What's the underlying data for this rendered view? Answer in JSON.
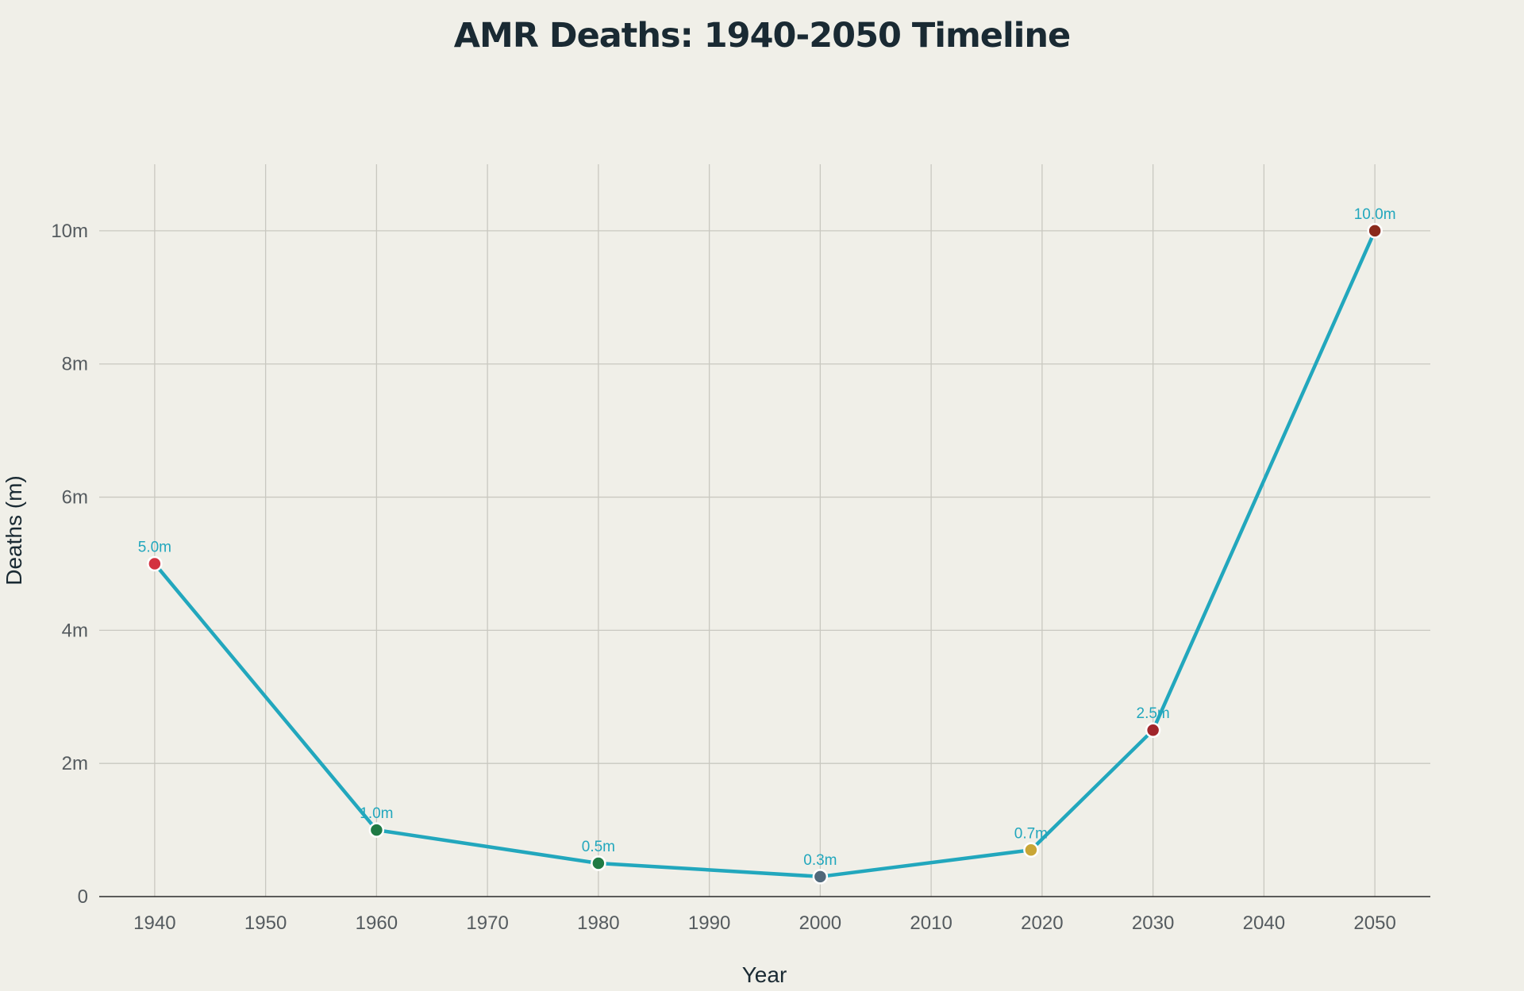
{
  "chart_data": {
    "type": "line",
    "title": "AMR Deaths: 1940-2050 Timeline",
    "xlabel": "Year",
    "ylabel": "Deaths (m)",
    "xlim": [
      1935,
      2055
    ],
    "ylim": [
      0,
      11
    ],
    "grid": true,
    "x_ticks": [
      1940,
      1950,
      1960,
      1970,
      1980,
      1990,
      2000,
      2010,
      2020,
      2030,
      2040,
      2050
    ],
    "x_tick_labels": [
      "1940",
      "1950",
      "1960",
      "1970",
      "1980",
      "1990",
      "2000",
      "2010",
      "2020",
      "2030",
      "2040",
      "2050"
    ],
    "y_ticks": [
      0,
      2,
      4,
      6,
      8,
      10
    ],
    "y_tick_labels": [
      "0",
      "2m",
      "4m",
      "6m",
      "8m",
      "10m"
    ],
    "line_color": "#22a7bd",
    "series": [
      {
        "x": [
          1940,
          1960,
          1980,
          2000,
          2019,
          2030,
          2050
        ],
        "y": [
          5.0,
          1.0,
          0.5,
          0.3,
          0.7,
          2.5,
          10.0
        ],
        "labels": [
          "5.0m",
          "1.0m",
          "0.5m",
          "0.3m",
          "0.7m",
          "2.5m",
          "10.0m"
        ],
        "marker_colors": [
          "#d3313f",
          "#1f7a44",
          "#1f7a44",
          "#51687a",
          "#c9a636",
          "#a1252b",
          "#8a2a1c"
        ]
      }
    ]
  }
}
